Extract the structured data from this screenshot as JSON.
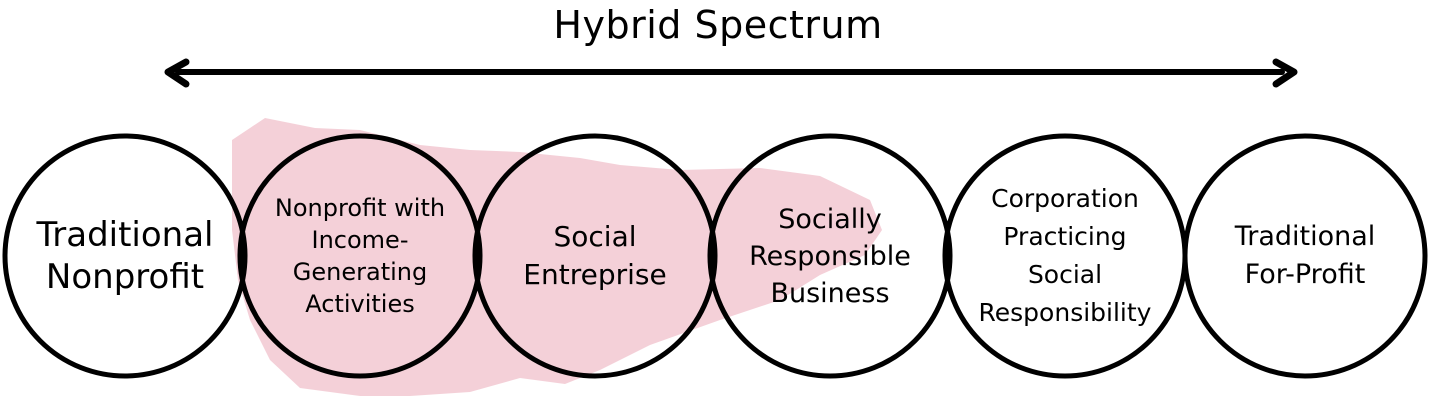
{
  "title": "Hybrid Spectrum",
  "highlight_color": "#e9a2b1",
  "stroke_color": "#000000",
  "circles": [
    {
      "label": "Traditional\nNonprofit"
    },
    {
      "label": "Nonprofit with\nIncome-\nGenerating\nActivities"
    },
    {
      "label": "Social\nEntreprise"
    },
    {
      "label": "Socially\nResponsible\nBusiness"
    },
    {
      "label": "Corporation\nPracticing\nSocial\nResponsibility"
    },
    {
      "label": "Traditional\nFor-Profit"
    }
  ]
}
